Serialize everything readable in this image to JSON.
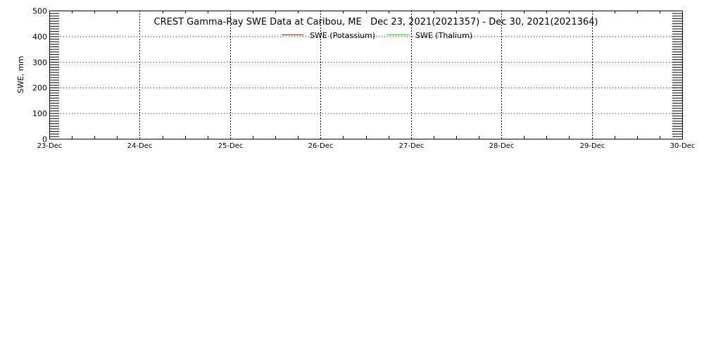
{
  "chart_data": {
    "type": "line",
    "title": "CREST Gamma-Ray SWE Data at Caribou, ME   Dec 23, 2021(2021357) - Dec 30, 2021(2021364)",
    "xlabel": "",
    "ylabel": "SWE, mm",
    "ylim": [
      0,
      500
    ],
    "yticks": [
      "0",
      "100",
      "200",
      "300",
      "400",
      "500"
    ],
    "xticks": [
      "23-Dec",
      "24-Dec",
      "25-Dec",
      "26-Dec",
      "27-Dec",
      "28-Dec",
      "29-Dec",
      "30-Dec"
    ],
    "grid": true,
    "legend_position": "top-center",
    "series": [
      {
        "name": "SWE (Potassium)",
        "color": "#ff0000",
        "values": []
      },
      {
        "name": "SWE (Thalium)",
        "color": "#00ff00",
        "values": []
      }
    ]
  }
}
